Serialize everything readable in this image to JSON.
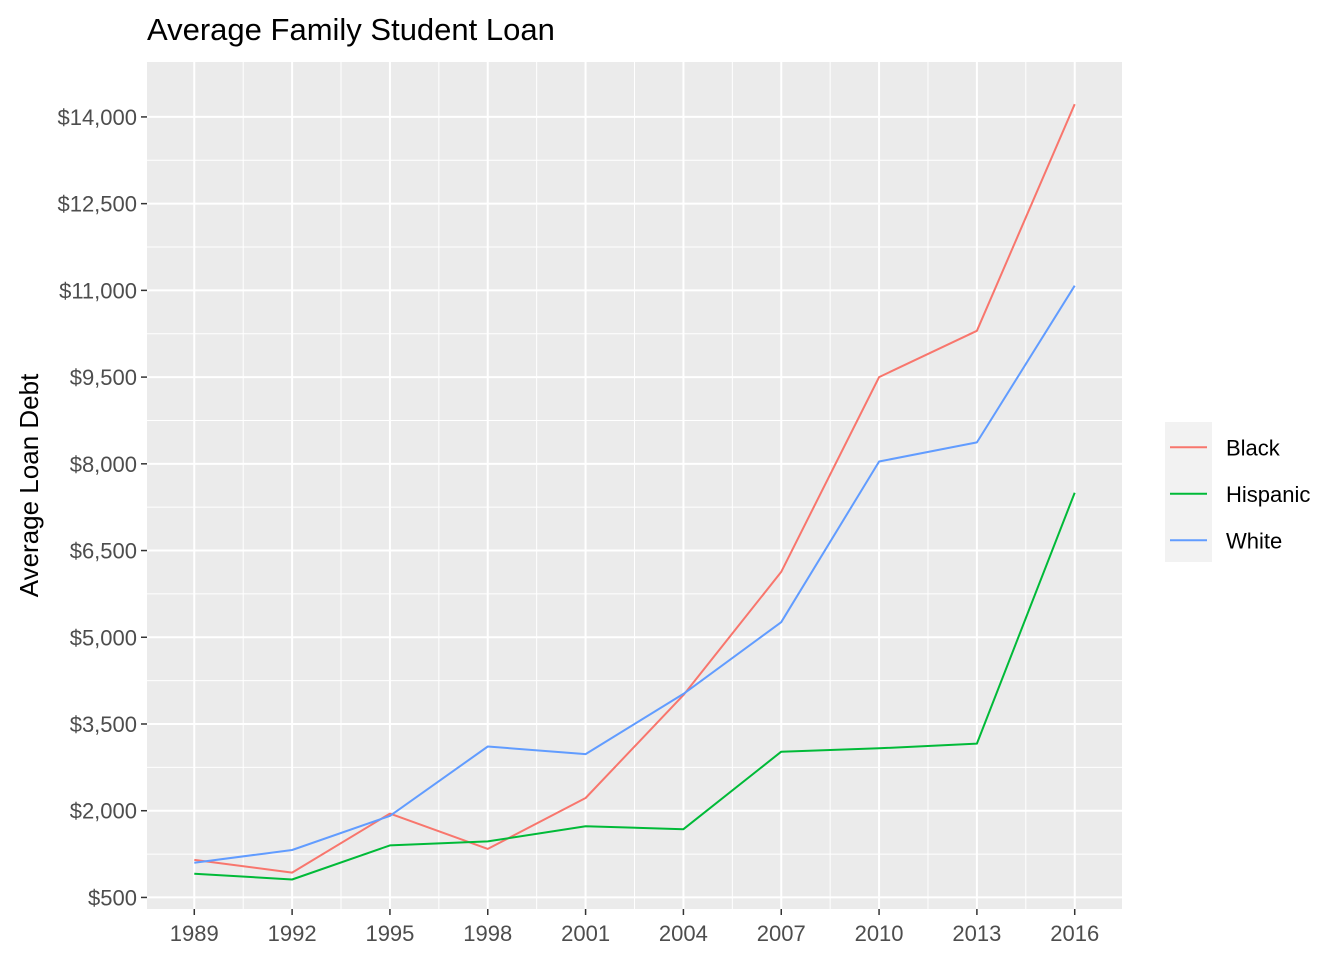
{
  "chart_data": {
    "type": "line",
    "title": "Average Family Student Loan",
    "xlabel": "",
    "ylabel": "Average Loan Debt",
    "x": [
      1989,
      1992,
      1995,
      1998,
      2001,
      2004,
      2007,
      2010,
      2013,
      2016
    ],
    "x_tick_labels": [
      "1989",
      "1992",
      "1995",
      "1998",
      "2001",
      "2004",
      "2007",
      "2010",
      "2013",
      "2016"
    ],
    "y_ticks": [
      500,
      2000,
      3500,
      5000,
      6500,
      8000,
      9500,
      11000,
      12500,
      14000
    ],
    "y_tick_labels": [
      "$500",
      "$2,000",
      "$3,500",
      "$5,000",
      "$6,500",
      "$8,000",
      "$9,500",
      "$11,000",
      "$12,500",
      "$14,000"
    ],
    "ylim": [
      300,
      14950
    ],
    "xlim": [
      1987.55,
      2017.45
    ],
    "grid": true,
    "legend_position": "right",
    "series": [
      {
        "name": "Black",
        "color": "#F8766D",
        "values": [
          1150,
          930,
          1950,
          1340,
          2220,
          4000,
          6130,
          9500,
          10300,
          14220
        ]
      },
      {
        "name": "Hispanic",
        "color": "#00BA38",
        "values": [
          910,
          810,
          1400,
          1470,
          1730,
          1680,
          3020,
          3080,
          3160,
          7500
        ]
      },
      {
        "name": "White",
        "color": "#619CFF",
        "values": [
          1100,
          1320,
          1910,
          3110,
          2980,
          4020,
          5260,
          8040,
          8370,
          11080
        ]
      }
    ]
  }
}
